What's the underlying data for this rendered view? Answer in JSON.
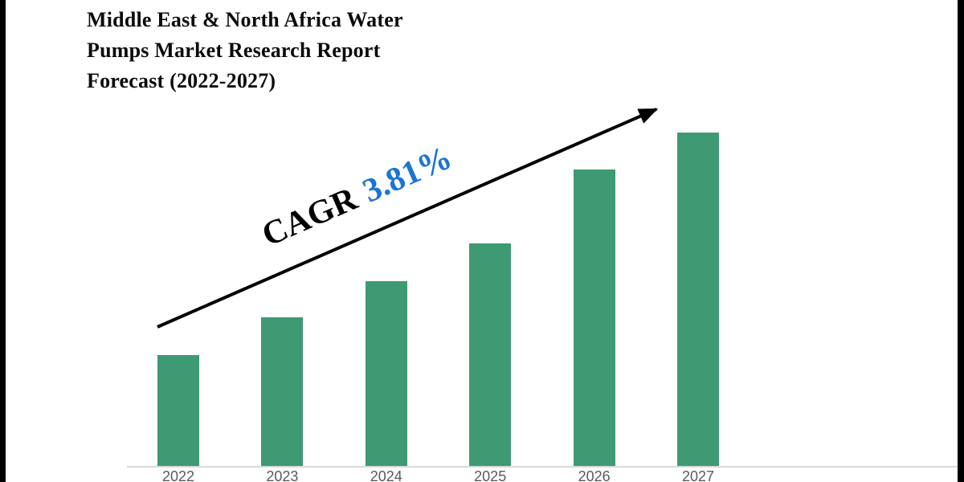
{
  "page": {
    "background": "#ffffff",
    "edge_strip_color": "#000000"
  },
  "title": {
    "lines": [
      "Middle East & North Africa Water",
      "Pumps Market Research Report",
      "Forecast (2022-2027)"
    ],
    "color": "#0b0b0b"
  },
  "annotation": {
    "cagr_label": "CAGR",
    "cagr_value": "3.81%",
    "label_color": "#000000",
    "value_color": "#1b75d1"
  },
  "chart_data": {
    "type": "bar",
    "title": "Middle East & North Africa Water Pumps Market Research Report Forecast (2022-2027)",
    "categories": [
      "2022",
      "2023",
      "2024",
      "2025",
      "2026",
      "2027"
    ],
    "values": [
      138,
      185,
      230,
      277,
      369,
      415
    ],
    "values_note": "relative bar heights (no numeric y-axis shown in figure)",
    "xlabel": "",
    "ylabel": "",
    "y_axis_visible": false,
    "gridlines": false,
    "legend": false,
    "bar_color": "#3e9a73",
    "axis_line_color": "#d9d9d9",
    "tick_label_color": "#595959",
    "annotation_text": "CAGR 3.81%",
    "trend_arrow": true,
    "arrow_color": "#000000"
  }
}
